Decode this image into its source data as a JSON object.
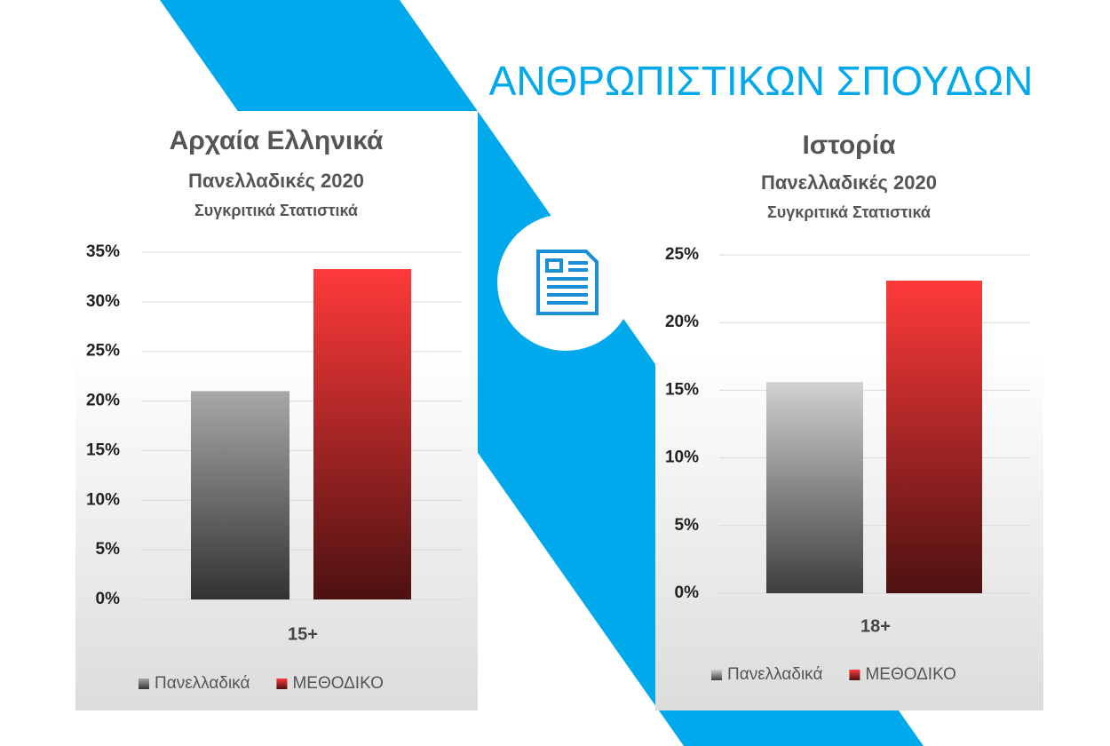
{
  "title": "ΑΝΘΡΩΠΙΣΤΙΚΩΝ ΣΠΟΥΔΩΝ",
  "chart_data": [
    {
      "type": "bar",
      "title": "Αρχαία Ελληνικά",
      "subtitle": "Πανελλαδικές 2020",
      "subtitle2": "Συγκριτικά Στατιστικά",
      "categories": [
        "15+"
      ],
      "series": [
        {
          "name": "Πανελλαδικά",
          "color": "#a9a7a7",
          "values": [
            21
          ]
        },
        {
          "name": "ΜΕΘΟΔΙΚΟ",
          "color": "#ff3a3a",
          "values": [
            33.3
          ]
        }
      ],
      "ylim": [
        0,
        35
      ],
      "yticks": [
        {
          "value": 0,
          "label": "0%"
        },
        {
          "value": 5,
          "label": "5%"
        },
        {
          "value": 10,
          "label": "10%"
        },
        {
          "value": 15,
          "label": "15%"
        },
        {
          "value": 20,
          "label": "20%"
        },
        {
          "value": 25,
          "label": "25%"
        },
        {
          "value": 30,
          "label": "30%"
        },
        {
          "value": 35,
          "label": "35%"
        }
      ],
      "grid": true,
      "legend": "bottom"
    },
    {
      "type": "bar",
      "title": "Ιστορία",
      "subtitle": "Πανελλαδικές 2020",
      "subtitle2": "Συγκριτικά Στατιστικά",
      "categories": [
        "18+"
      ],
      "series": [
        {
          "name": "Πανελλαδικά",
          "color": "#d2d0d0",
          "values": [
            15.6
          ]
        },
        {
          "name": "ΜΕΘΟΔΙΚΟ",
          "color": "#ff3a3a",
          "values": [
            23.1
          ]
        }
      ],
      "ylim": [
        0,
        25
      ],
      "yticks": [
        {
          "value": 0,
          "label": "0%"
        },
        {
          "value": 5,
          "label": "5%"
        },
        {
          "value": 10,
          "label": "10%"
        },
        {
          "value": 15,
          "label": "15%"
        },
        {
          "value": 20,
          "label": "20%"
        },
        {
          "value": 25,
          "label": "25%"
        }
      ],
      "grid": true,
      "legend": "bottom"
    }
  ]
}
